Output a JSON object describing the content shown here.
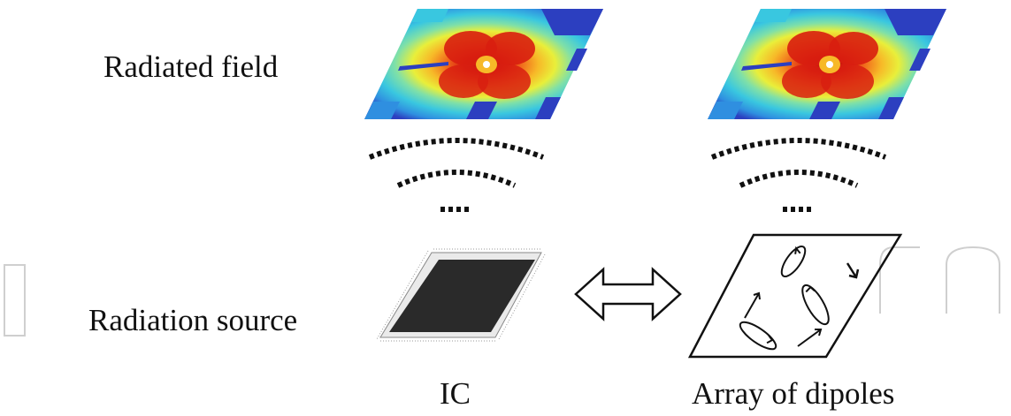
{
  "labels": {
    "radiated_field": "Radiated field",
    "radiation_source": "Radiation source",
    "ic": "IC",
    "array_of_dipoles": "Array of dipoles"
  },
  "field_map_palette": [
    "#2c3fc0",
    "#2f8fe0",
    "#39c7e0",
    "#7fe0a8",
    "#e9ef3a",
    "#f7b928",
    "#f06a1c",
    "#d81e10",
    "#a30d0d"
  ],
  "colors": {
    "ink": "#111111",
    "chip": "#2a2a2a",
    "watermark": "#c9c9c9"
  },
  "icons": [
    "radiation-waves-icon",
    "ic-chip-icon",
    "double-arrow-icon",
    "dipole-array-icon"
  ]
}
